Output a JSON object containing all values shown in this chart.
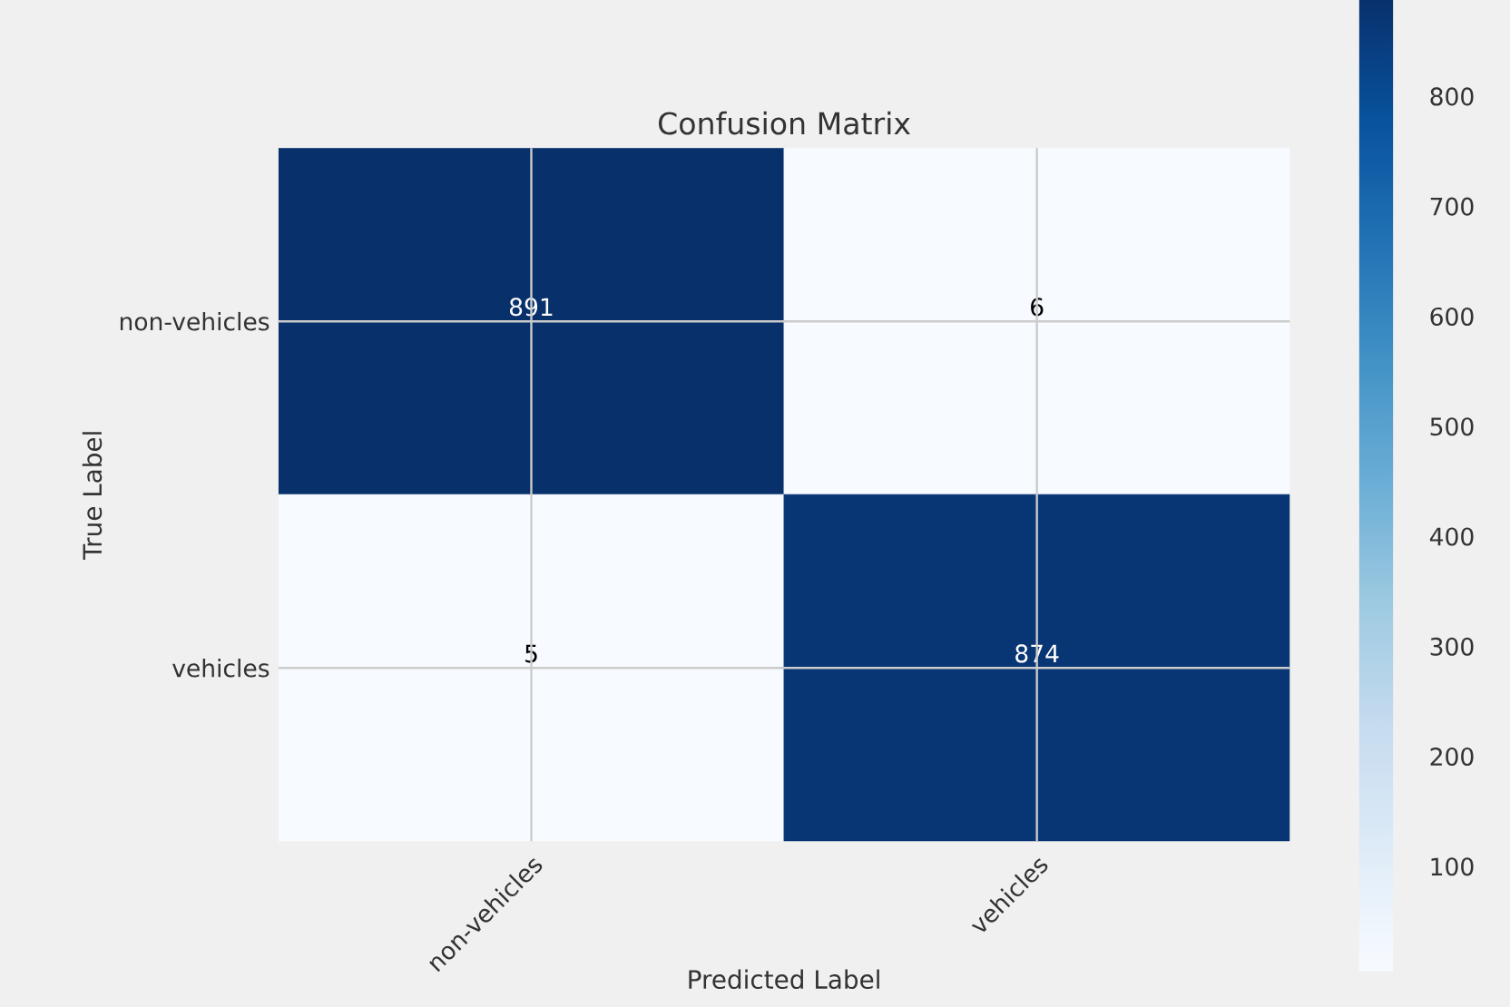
{
  "chart_data": {
    "type": "heatmap",
    "title": "Confusion Matrix",
    "xlabel": "Predicted Label",
    "ylabel": "True Label",
    "categories": [
      "non-vehicles",
      "vehicles"
    ],
    "y_categories": [
      "non-vehicles",
      "vehicles"
    ],
    "cells": [
      [
        891,
        6
      ],
      [
        5,
        874
      ]
    ],
    "clim": [
      5,
      891
    ],
    "cticks": [
      100,
      200,
      300,
      400,
      500,
      600,
      700,
      800
    ],
    "data_labels": true,
    "grid": true
  }
}
